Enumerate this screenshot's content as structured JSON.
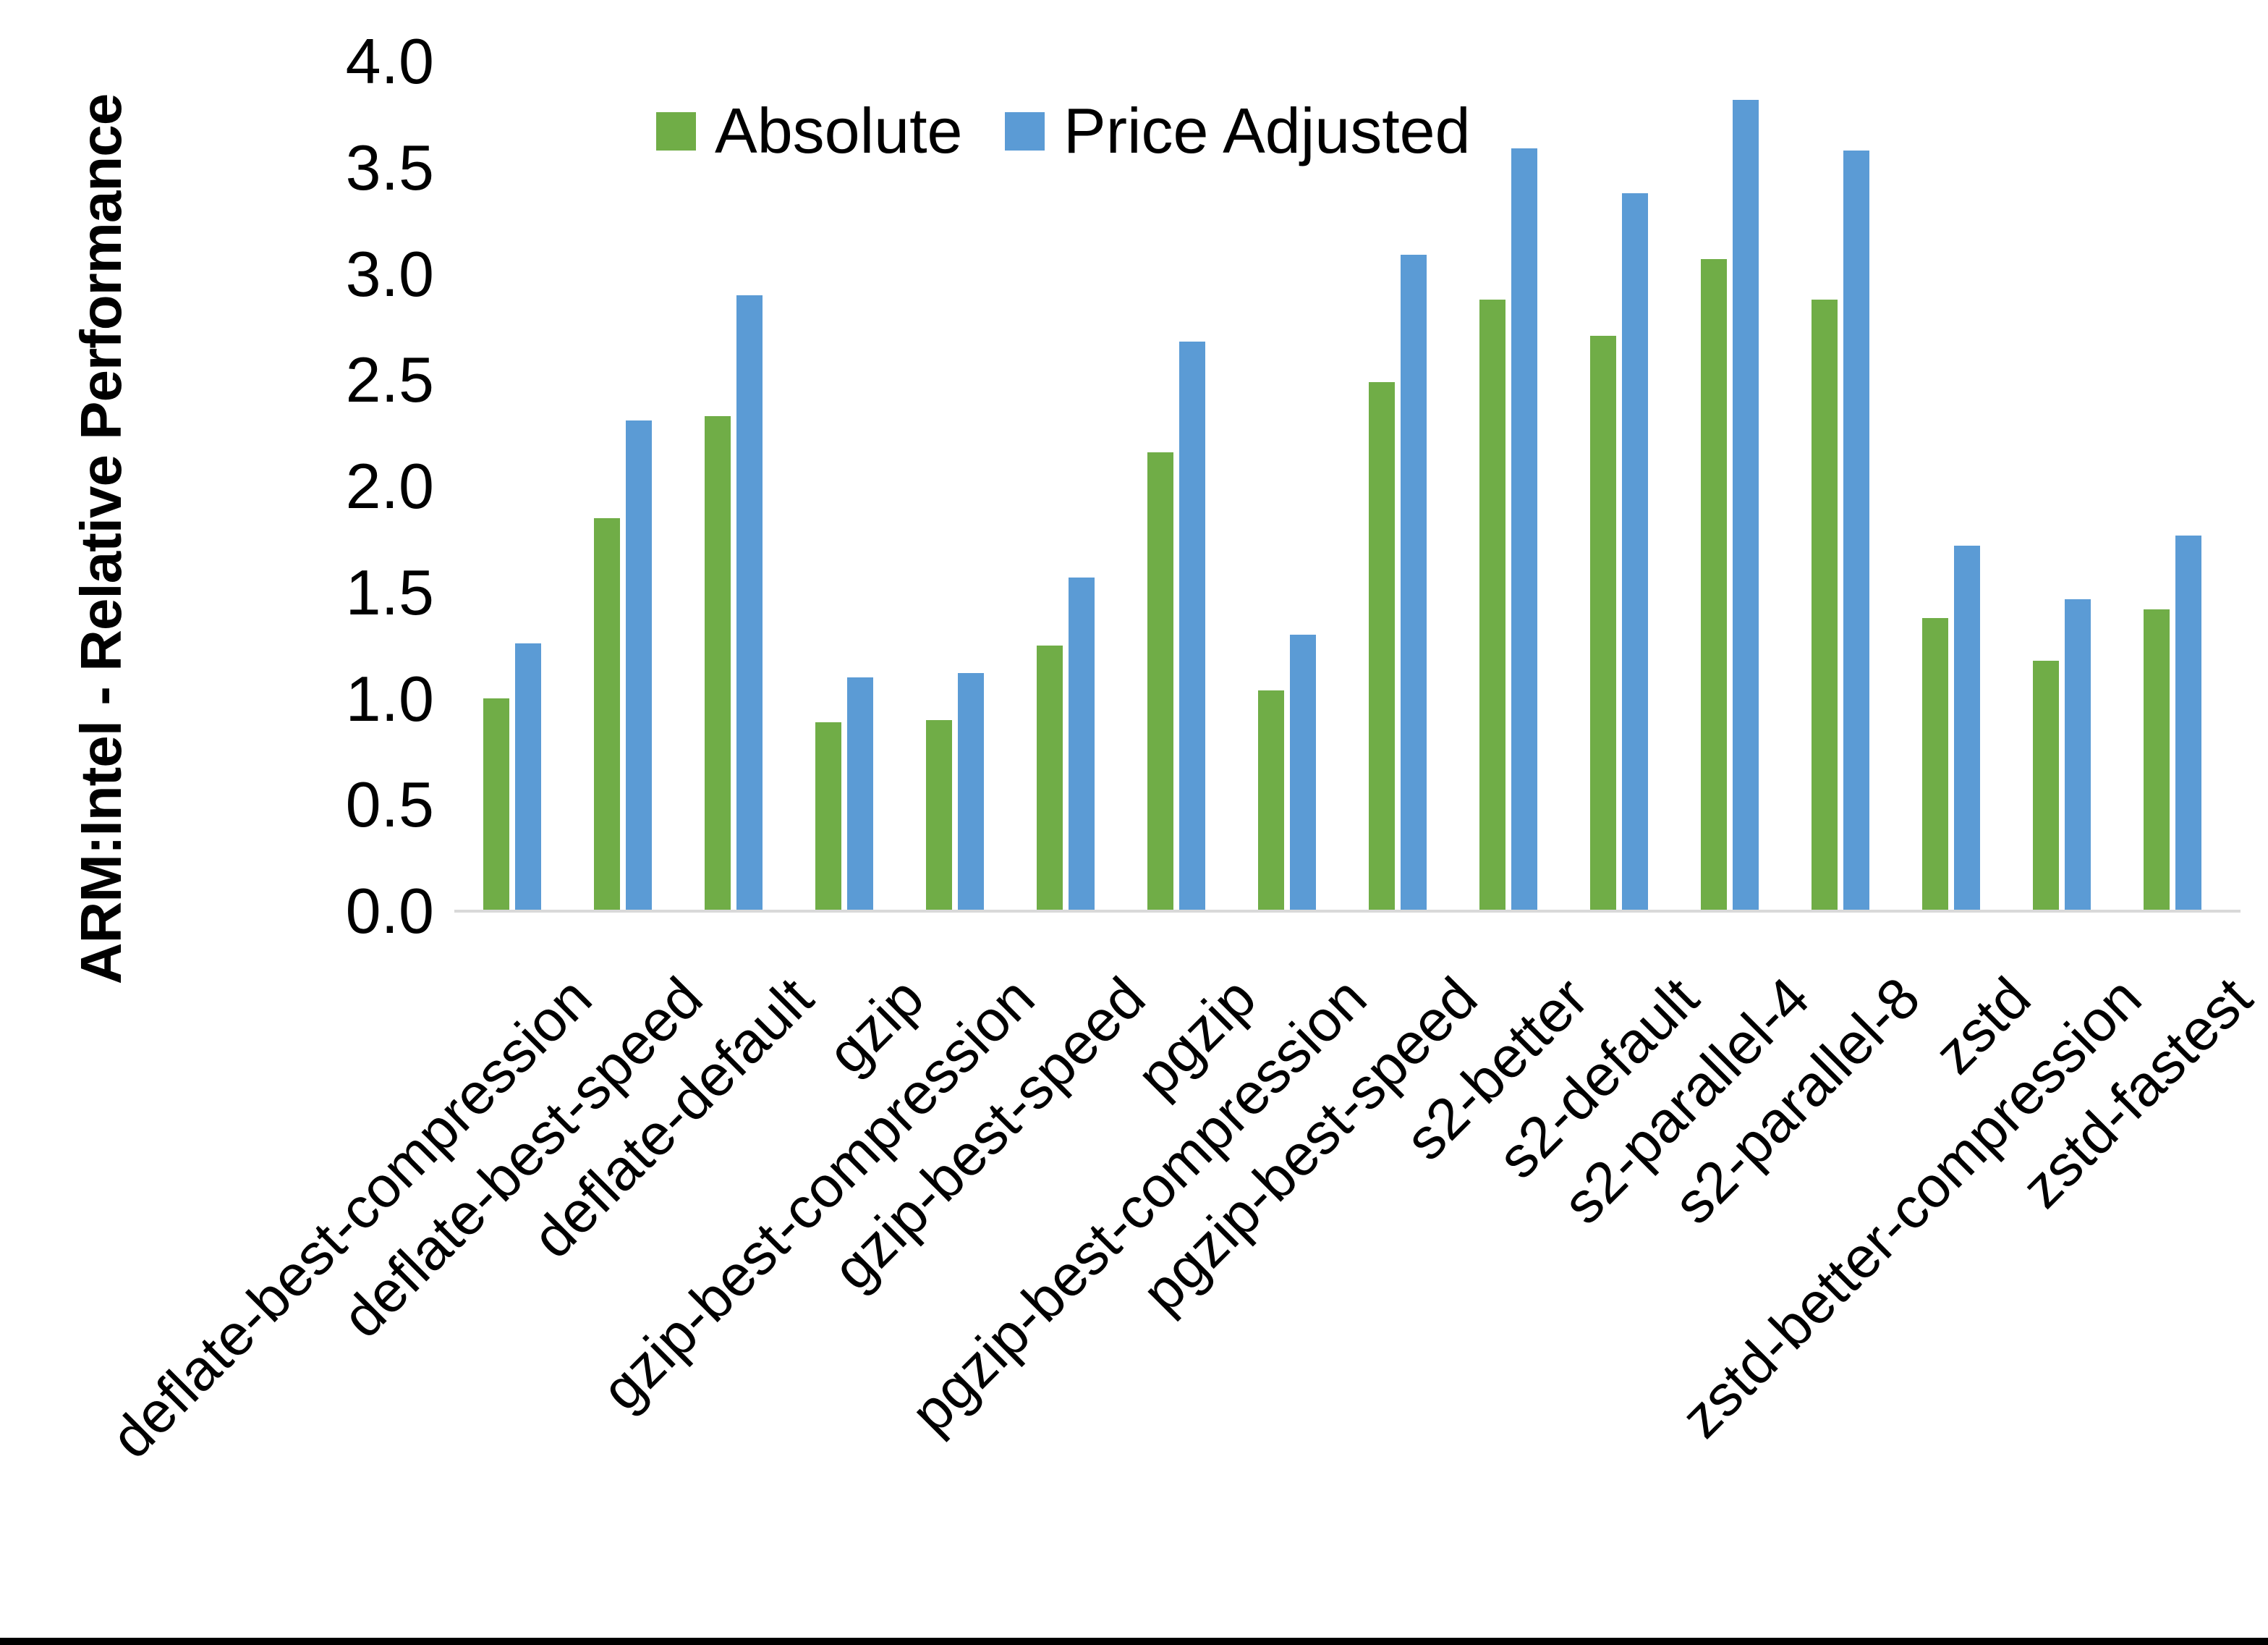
{
  "y_axis": {
    "title": "ARM:Intel - Relative Performance",
    "tick_labels": [
      "4.0",
      "3.5",
      "3.0",
      "2.5",
      "2.0",
      "1.5",
      "1.0",
      "0.5",
      "0.0"
    ],
    "tick_values": [
      4.0,
      3.5,
      3.0,
      2.5,
      2.0,
      1.5,
      1.0,
      0.5,
      0.0
    ]
  },
  "legend": {
    "items": [
      {
        "label": "Absolute",
        "color": "#70AD47"
      },
      {
        "label": "Price Adjusted",
        "color": "#5B9BD5"
      }
    ]
  },
  "colors": {
    "absolute_green": "#70AD47",
    "price_adjusted_blue": "#5B9BD5",
    "axis_line_gray": "#D9D9D9",
    "text_black": "#000000",
    "bottom_border_black": "#000000"
  },
  "chart_data": {
    "type": "bar",
    "title": "",
    "xlabel": "",
    "ylabel": "ARM:Intel - Relative Performance",
    "ylim": [
      0.0,
      4.0
    ],
    "ytick_step": 0.5,
    "grid": false,
    "legend_position": "top-center",
    "categories": [
      "deflate-best-compression",
      "deflate-best-speed",
      "deflate-default",
      "gzip",
      "gzip-best-compression",
      "gzip-best-speed",
      "pgzip",
      "pgzip-best-compression",
      "pgzip-best-speed",
      "s2-better",
      "s2-default",
      "s2-parallel-4",
      "s2-parallel-8",
      "zstd",
      "zstd-better-compression",
      "zstd-fastest"
    ],
    "series": [
      {
        "name": "Absolute",
        "color": "#70AD47",
        "values": [
          1.0,
          1.85,
          2.33,
          0.89,
          0.9,
          1.25,
          2.16,
          1.04,
          2.49,
          2.88,
          2.71,
          3.07,
          2.88,
          1.38,
          1.18,
          1.42
        ]
      },
      {
        "name": "Price Adjusted",
        "color": "#5B9BD5",
        "values": [
          1.26,
          2.31,
          2.9,
          1.1,
          1.12,
          1.57,
          2.68,
          1.3,
          3.09,
          3.59,
          3.38,
          3.82,
          3.58,
          1.72,
          1.47,
          1.77
        ]
      }
    ]
  }
}
